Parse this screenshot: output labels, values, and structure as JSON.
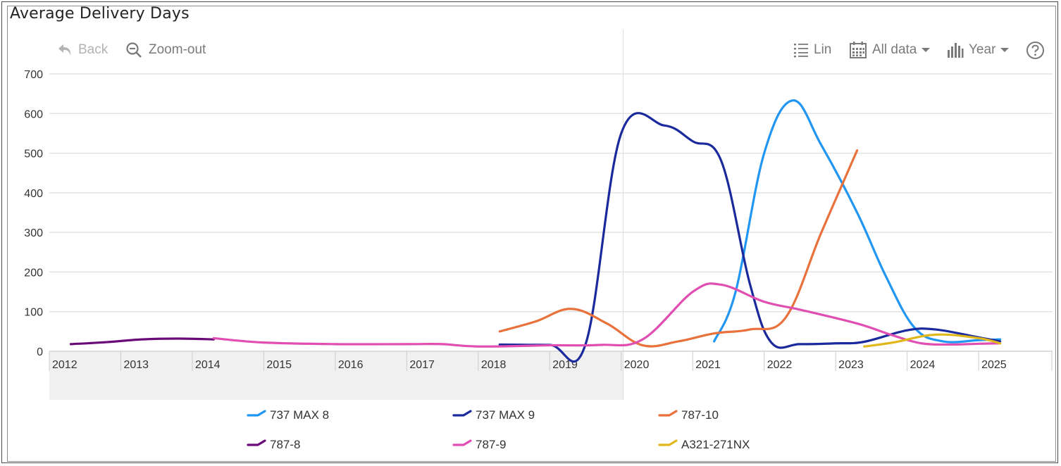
{
  "toolbar": {
    "back_label": "Back",
    "zoom_out_label": "Zoom-out",
    "scale_label": "Lin",
    "range_label": "All data",
    "period_label": "Year",
    "help_icon": "question-circle-icon"
  },
  "chart_data": {
    "type": "line",
    "title": "Average Delivery Days",
    "xlabel": "",
    "ylabel": "",
    "xlim": [
      2012,
      2025.6
    ],
    "ylim": [
      0,
      700
    ],
    "yticks": [
      0,
      100,
      200,
      300,
      400,
      500,
      600,
      700
    ],
    "categories": [
      "2012",
      "2013",
      "2014",
      "2015",
      "2016",
      "2017",
      "2018",
      "2019",
      "2020",
      "2021",
      "2022",
      "2023",
      "2024",
      "2025"
    ],
    "grid": "horizontal",
    "legend_position": "bottom",
    "series": [
      {
        "name": "737 MAX 8",
        "color": "#2196F3",
        "x": [
          2021.3,
          2021.6,
          2022.0,
          2022.4,
          2022.8,
          2023.3,
          2023.7,
          2024.1,
          2024.5,
          2025.0,
          2025.3
        ],
        "y": [
          25,
          150,
          500,
          633,
          520,
          350,
          190,
          60,
          25,
          28,
          30
        ]
      },
      {
        "name": "737 MAX 9",
        "color": "#1A2A9C",
        "x": [
          2018.3,
          2019.0,
          2019.5,
          2020.0,
          2020.6,
          2021.0,
          2021.4,
          2021.8,
          2022.1,
          2022.5,
          2023.0,
          2023.4,
          2024.0,
          2024.4,
          2025.0,
          2025.3
        ],
        "y": [
          17,
          16,
          17,
          550,
          570,
          530,
          480,
          170,
          22,
          18,
          20,
          24,
          53,
          55,
          35,
          25
        ]
      },
      {
        "name": "787-10",
        "color": "#E8713C",
        "x": [
          2018.3,
          2018.8,
          2019.3,
          2019.8,
          2020.3,
          2020.8,
          2021.3,
          2021.8,
          2022.3,
          2022.8,
          2023.3
        ],
        "y": [
          50,
          75,
          107,
          70,
          15,
          25,
          45,
          55,
          85,
          300,
          507
        ]
      },
      {
        "name": "787-8",
        "color": "#6A0A78",
        "x": [
          2012.3,
          2012.8,
          2013.3,
          2013.8,
          2014.3
        ],
        "y": [
          18,
          23,
          30,
          32,
          30
        ]
      },
      {
        "name": "787-9",
        "color": "#E04EB2",
        "x": [
          2014.3,
          2015.0,
          2016.0,
          2017.0,
          2017.5,
          2018.0,
          2019.0,
          2019.7,
          2020.3,
          2021.0,
          2021.4,
          2022.0,
          2022.5,
          2023.3,
          2023.8,
          2024.2,
          2024.6,
          2025.0,
          2025.3
        ],
        "y": [
          33,
          22,
          18,
          18,
          18,
          12,
          15,
          16,
          30,
          150,
          168,
          125,
          105,
          70,
          40,
          20,
          17,
          19,
          20
        ]
      },
      {
        "name": "A321-271NX",
        "color": "#E0B81C",
        "x": [
          2023.4,
          2023.8,
          2024.4,
          2025.0,
          2025.3
        ],
        "y": [
          12,
          22,
          42,
          33,
          20
        ]
      }
    ]
  }
}
